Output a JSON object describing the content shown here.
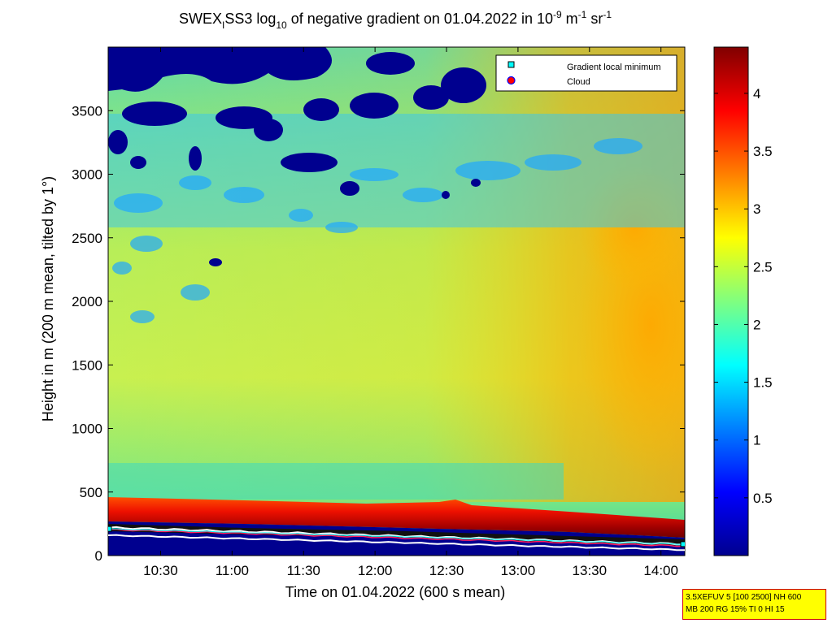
{
  "chart_data": {
    "type": "heatmap",
    "title_parts": {
      "a": "SWEX",
      "a_sub": "I",
      "b": "SS3 log",
      "b_sub": "10",
      "c": " of negative gradient on 01.04.2022 in 10",
      "c_sup": "-9",
      "d": " m",
      "d_sup": "-1",
      "e": " sr",
      "e_sup": "-1"
    },
    "xlabel": "Time on 01.04.2022 (600 s mean)",
    "ylabel": "Height in m (200 m mean, tilted by 1°)",
    "x_ticks": [
      "10:30",
      "11:00",
      "11:30",
      "12:00",
      "12:30",
      "13:00",
      "13:30",
      "14:00"
    ],
    "x_range": [
      "10:08",
      "14:10"
    ],
    "y_ticks": [
      0,
      500,
      1000,
      1500,
      2000,
      2500,
      3000,
      3500
    ],
    "y_range": [
      0,
      4000
    ],
    "colorbar": {
      "ticks": [
        "0.5",
        "1",
        "1.5",
        "2",
        "2.5",
        "3",
        "3.5",
        "4"
      ],
      "range": [
        0,
        4.4
      ],
      "colormap": "jet"
    },
    "legend": {
      "placement": "top-right",
      "entries": [
        {
          "label": "Gradient local minimum",
          "marker": "square",
          "color": "#00ffff"
        },
        {
          "label": "Cloud",
          "marker": "circle",
          "color": "#ff0000"
        }
      ]
    },
    "info_lines": [
      "3.5XEFUV 5 [100 2500] NH 600",
      "MB 200 RG 15% TI 0 HI 15"
    ],
    "ground_layer_height_m": [
      220,
      90
    ],
    "gradient_minimum_line_m": [
      200,
      80
    ]
  }
}
